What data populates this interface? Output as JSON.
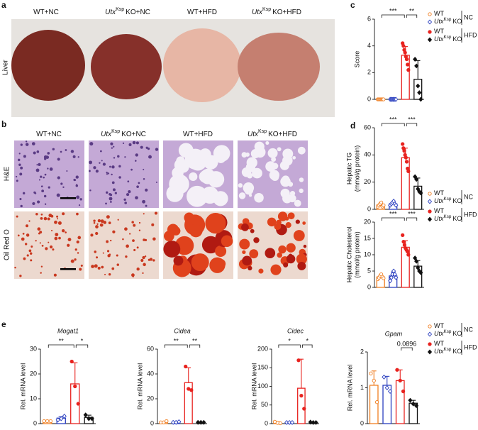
{
  "panel_labels": [
    "a",
    "b",
    "c",
    "d",
    "e"
  ],
  "photo_columns": [
    {
      "text": "WT+NC"
    },
    {
      "italic": "Utx",
      "sup": "Ksp",
      "text": "KO+NC"
    },
    {
      "text": "WT+HFD"
    },
    {
      "italic": "Utx",
      "sup": "Ksp",
      "text": "KO+HFD"
    }
  ],
  "photo_a_row": "Liver",
  "photo_b_rows": [
    "H&E",
    "Oil Red O"
  ],
  "legend": {
    "entries": [
      {
        "genotype": {
          "text": "WT"
        },
        "color": "#f07f22",
        "marker": "circle",
        "filled": false
      },
      {
        "genotype": {
          "italic": "Utx",
          "sup": "Ksp",
          "text": "KO"
        },
        "color": "#2a3fbf",
        "marker": "diamond",
        "filled": false
      },
      {
        "genotype": {
          "text": "WT"
        },
        "color": "#e8231f",
        "marker": "circle",
        "filled": true
      },
      {
        "genotype": {
          "italic": "Utx",
          "sup": "Ksp",
          "text": "KO"
        },
        "color": "#111111",
        "marker": "diamond",
        "filled": true
      }
    ],
    "diets": [
      "NC",
      "HFD"
    ]
  },
  "chart_data": [
    {
      "type": "bar",
      "ylabel": [
        "Score"
      ],
      "ylim": [
        0,
        6
      ],
      "yticks": [
        0,
        2,
        4,
        6
      ],
      "series": [
        {
          "values": [
            0
          ],
          "errors": [
            0
          ],
          "points": [
            0,
            0,
            0,
            0,
            0,
            0,
            0,
            0
          ]
        },
        {
          "values": [
            0
          ],
          "errors": [
            0
          ],
          "points": [
            0,
            0,
            0,
            0,
            0,
            0,
            0
          ]
        },
        {
          "values": [
            3.3
          ],
          "errors": [
            0.65
          ],
          "points": [
            4.2,
            4,
            3.7,
            3.5,
            3.2,
            3,
            2.6,
            2.2
          ]
        },
        {
          "values": [
            1.5
          ],
          "errors": [
            1.4
          ],
          "points": [
            3,
            2.5,
            1,
            0.5,
            0
          ]
        }
      ],
      "significance": [
        {
          "groups": [
            0,
            2
          ],
          "label": "***"
        },
        {
          "groups": [
            2,
            3
          ],
          "label": "**"
        }
      ]
    },
    {
      "type": "bar",
      "ylabel": [
        "Hepatic TG",
        "(mmol/g protein)"
      ],
      "ylim": [
        0,
        60
      ],
      "yticks": [
        0,
        20,
        40,
        60
      ],
      "series": [
        {
          "values": [
            3.2
          ],
          "errors": [
            1.2
          ],
          "points": [
            2,
            3,
            4,
            5,
            2,
            3
          ]
        },
        {
          "values": [
            4
          ],
          "errors": [
            1.2
          ],
          "points": [
            3,
            4,
            5,
            6,
            4,
            3
          ]
        },
        {
          "values": [
            38
          ],
          "errors": [
            7
          ],
          "points": [
            48,
            45,
            43,
            40,
            38,
            35,
            30,
            28
          ]
        },
        {
          "values": [
            17
          ],
          "errors": [
            6
          ],
          "points": [
            24,
            22,
            15,
            13,
            12
          ]
        }
      ],
      "significance": [
        {
          "groups": [
            0,
            2
          ],
          "label": "***"
        },
        {
          "groups": [
            2,
            3
          ],
          "label": "***"
        }
      ]
    },
    {
      "type": "bar",
      "ylabel": [
        "Hepatic Cholesterol",
        "(mmol/g protein)"
      ],
      "ylim": [
        0,
        20
      ],
      "yticks": [
        0,
        5,
        10,
        15,
        20
      ],
      "series": [
        {
          "values": [
            3.2
          ],
          "errors": [
            0.5
          ],
          "points": [
            2.5,
            3,
            3.5,
            4,
            3.2,
            2.8
          ]
        },
        {
          "values": [
            3.5
          ],
          "errors": [
            1.2
          ],
          "points": [
            2,
            3,
            4,
            5,
            4,
            3
          ]
        },
        {
          "values": [
            12.3
          ],
          "errors": [
            2
          ],
          "points": [
            16,
            14,
            13,
            12,
            11.5,
            11,
            10
          ]
        },
        {
          "values": [
            6.5
          ],
          "errors": [
            1.7
          ],
          "points": [
            9,
            8,
            6,
            5,
            4.5
          ]
        }
      ],
      "significance": [
        {
          "groups": [
            0,
            2
          ],
          "label": "***"
        },
        {
          "groups": [
            2,
            3
          ],
          "label": "***"
        }
      ]
    },
    {
      "type": "bar",
      "title": "Mogat1",
      "ylabel": [
        "Rel. mRNA level"
      ],
      "ylim": [
        0,
        30
      ],
      "yticks": [
        0,
        10,
        20,
        30
      ],
      "series": [
        {
          "values": [
            1
          ],
          "errors": [
            0.2
          ],
          "points": [
            1,
            1,
            1
          ]
        },
        {
          "values": [
            2.2
          ],
          "errors": [
            0.6
          ],
          "points": [
            1.5,
            2,
            3
          ]
        },
        {
          "values": [
            16
          ],
          "errors": [
            8.5
          ],
          "points": [
            25,
            15,
            8
          ]
        },
        {
          "values": [
            2.5
          ],
          "errors": [
            0.9
          ],
          "points": [
            3.5,
            2,
            2
          ]
        }
      ],
      "significance": [
        {
          "groups": [
            0,
            2
          ],
          "label": "**"
        },
        {
          "groups": [
            2,
            3
          ],
          "label": "*"
        }
      ]
    },
    {
      "type": "bar",
      "title": "Cidea",
      "ylabel": [
        "Rel. mRNA level"
      ],
      "ylim": [
        0,
        60
      ],
      "yticks": [
        0,
        20,
        40,
        60
      ],
      "series": [
        {
          "values": [
            1
          ],
          "errors": [
            0.5
          ],
          "points": [
            1,
            1,
            2
          ]
        },
        {
          "values": [
            1.2
          ],
          "errors": [
            0.3
          ],
          "points": [
            1,
            1,
            1.5
          ]
        },
        {
          "values": [
            33
          ],
          "errors": [
            12
          ],
          "points": [
            46,
            28,
            27
          ]
        },
        {
          "values": [
            1
          ],
          "errors": [
            0.2
          ],
          "points": [
            1,
            1,
            1
          ]
        }
      ],
      "significance": [
        {
          "groups": [
            0,
            2
          ],
          "label": "**"
        },
        {
          "groups": [
            2,
            3
          ],
          "label": "**"
        }
      ]
    },
    {
      "type": "bar",
      "title": "Cidec",
      "ylabel": [
        "Rel. mRNA level"
      ],
      "ylim": [
        0,
        200
      ],
      "yticks": [
        0,
        50,
        100,
        150,
        200
      ],
      "series": [
        {
          "values": [
            3
          ],
          "errors": [
            2
          ],
          "points": [
            5,
            2,
            1
          ]
        },
        {
          "values": [
            3
          ],
          "errors": [
            0.5
          ],
          "points": [
            3,
            3,
            3
          ]
        },
        {
          "values": [
            95
          ],
          "errors": [
            78
          ],
          "points": [
            170,
            75,
            40
          ]
        },
        {
          "values": [
            3
          ],
          "errors": [
            0.5
          ],
          "points": [
            4,
            3,
            3
          ]
        }
      ],
      "significance": [
        {
          "groups": [
            0,
            2
          ],
          "label": "*"
        },
        {
          "groups": [
            2,
            3
          ],
          "label": "*"
        }
      ]
    },
    {
      "type": "bar",
      "title": "Gpam",
      "ylabel": [
        "Rel. mRNA level"
      ],
      "ylim": [
        0,
        2
      ],
      "yticks": [
        0,
        1,
        2
      ],
      "series": [
        {
          "values": [
            1.07
          ],
          "errors": [
            0.4
          ],
          "points": [
            1.4,
            1.2,
            0.6
          ]
        },
        {
          "values": [
            1.07
          ],
          "errors": [
            0.25
          ],
          "points": [
            1.3,
            1,
            0.9
          ]
        },
        {
          "values": [
            1.2
          ],
          "errors": [
            0.3
          ],
          "points": [
            1.5,
            1.2,
            0.9
          ]
        },
        {
          "values": [
            0.57
          ],
          "errors": [
            0.08
          ],
          "points": [
            0.65,
            0.55,
            0.5
          ]
        }
      ],
      "significance": [
        {
          "groups": [
            2,
            3
          ],
          "label": "0.0896"
        }
      ]
    }
  ]
}
